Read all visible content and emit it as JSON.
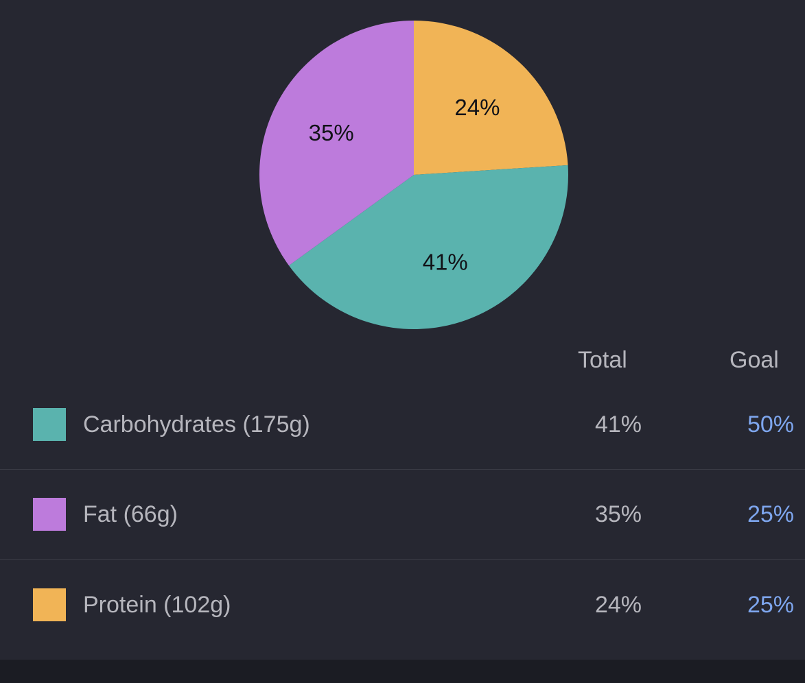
{
  "colors": {
    "background": "#262731",
    "carbohydrates": "#5ab3ae",
    "fat": "#bd7bdc",
    "protein": "#f1b456",
    "goal_text": "#7ea6ee",
    "muted_text": "#b6b6bd"
  },
  "table": {
    "total_header": "Total",
    "goal_header": "Goal",
    "rows": [
      {
        "label": "Carbohydrates (175g)",
        "total": "41%",
        "goal": "50%"
      },
      {
        "label": "Fat (66g)",
        "total": "35%",
        "goal": "25%"
      },
      {
        "label": "Protein (102g)",
        "total": "24%",
        "goal": "25%"
      }
    ]
  },
  "chart_data": {
    "type": "pie",
    "slices": [
      {
        "label": "Protein",
        "value": 24,
        "display": "24%",
        "color": "#f1b456"
      },
      {
        "label": "Carbohydrates",
        "value": 41,
        "display": "41%",
        "color": "#5ab3ae"
      },
      {
        "label": "Fat",
        "value": 35,
        "display": "35%",
        "color": "#bd7bdc"
      }
    ],
    "start": "12 o'clock",
    "direction": "clockwise",
    "legend": "table-below"
  }
}
